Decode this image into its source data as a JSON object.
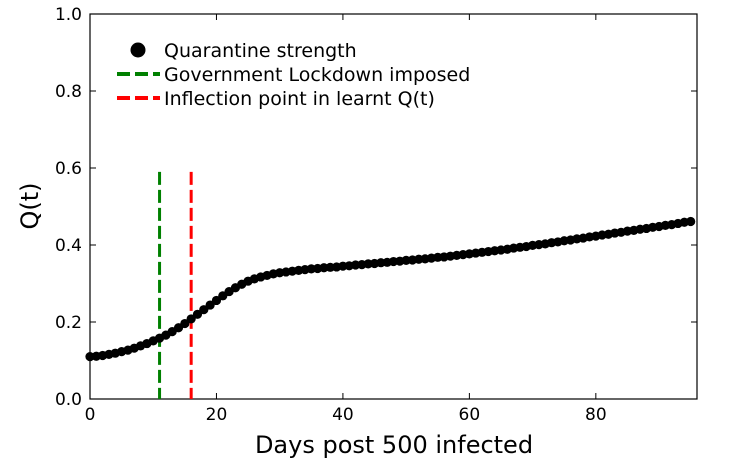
{
  "chart_data": {
    "type": "scatter",
    "xlabel": "Days post 500 infected",
    "ylabel": "Q(t)",
    "xlim": [
      0,
      96
    ],
    "ylim": [
      0,
      1.0
    ],
    "x_ticks": [
      "0",
      "20",
      "40",
      "60",
      "80"
    ],
    "y_ticks": [
      "0.0",
      "0.2",
      "0.4",
      "0.6",
      "0.8",
      "1.0"
    ],
    "x_tick_values": [
      0,
      20,
      40,
      60,
      80
    ],
    "y_tick_values": [
      0,
      0.2,
      0.4,
      0.6,
      0.8,
      1.0
    ],
    "grid": false,
    "legend_position": "top-left",
    "legend": [
      {
        "label": "Quarantine strength",
        "marker": "circle",
        "color": "#000000"
      },
      {
        "label": "Government Lockdown imposed",
        "marker": "dashed-line",
        "color": "#008000"
      },
      {
        "label": "Inflection point in learnt Q(t)",
        "marker": "dashed-line",
        "color": "#ff0000"
      }
    ],
    "vertical_lines": [
      {
        "name": "Government Lockdown imposed",
        "x": 11,
        "y_top": 0.59,
        "color": "#008000"
      },
      {
        "name": "Inflection point in learnt Q(t)",
        "x": 16,
        "y_top": 0.59,
        "color": "#ff0000"
      }
    ],
    "series": [
      {
        "name": "Quarantine strength",
        "color": "#000000",
        "x": [
          0,
          1,
          2,
          3,
          4,
          5,
          6,
          7,
          8,
          9,
          10,
          11,
          12,
          13,
          14,
          15,
          16,
          17,
          18,
          19,
          20,
          21,
          22,
          23,
          24,
          25,
          26,
          27,
          28,
          29,
          30,
          31,
          32,
          33,
          34,
          35,
          36,
          37,
          38,
          39,
          40,
          41,
          42,
          43,
          44,
          45,
          46,
          47,
          48,
          49,
          50,
          51,
          52,
          53,
          54,
          55,
          56,
          57,
          58,
          59,
          60,
          61,
          62,
          63,
          64,
          65,
          66,
          67,
          68,
          69,
          70,
          71,
          72,
          73,
          74,
          75,
          76,
          77,
          78,
          79,
          80,
          81,
          82,
          83,
          84,
          85,
          86,
          87,
          88,
          89,
          90,
          91,
          92,
          93,
          94,
          95
        ],
        "y": [
          0.11,
          0.111,
          0.113,
          0.116,
          0.119,
          0.123,
          0.127,
          0.132,
          0.138,
          0.144,
          0.151,
          0.158,
          0.166,
          0.175,
          0.185,
          0.196,
          0.208,
          0.22,
          0.232,
          0.244,
          0.256,
          0.268,
          0.279,
          0.289,
          0.298,
          0.306,
          0.312,
          0.317,
          0.321,
          0.325,
          0.328,
          0.33,
          0.332,
          0.334,
          0.336,
          0.338,
          0.339,
          0.341,
          0.342,
          0.343,
          0.345,
          0.346,
          0.348,
          0.349,
          0.351,
          0.352,
          0.354,
          0.355,
          0.357,
          0.358,
          0.36,
          0.361,
          0.363,
          0.364,
          0.366,
          0.368,
          0.369,
          0.371,
          0.373,
          0.375,
          0.377,
          0.379,
          0.381,
          0.383,
          0.385,
          0.387,
          0.389,
          0.392,
          0.394,
          0.396,
          0.399,
          0.401,
          0.403,
          0.406,
          0.408,
          0.411,
          0.413,
          0.416,
          0.418,
          0.421,
          0.423,
          0.426,
          0.428,
          0.431,
          0.433,
          0.436,
          0.438,
          0.441,
          0.443,
          0.446,
          0.448,
          0.451,
          0.453,
          0.456,
          0.459,
          0.461
        ]
      }
    ]
  }
}
